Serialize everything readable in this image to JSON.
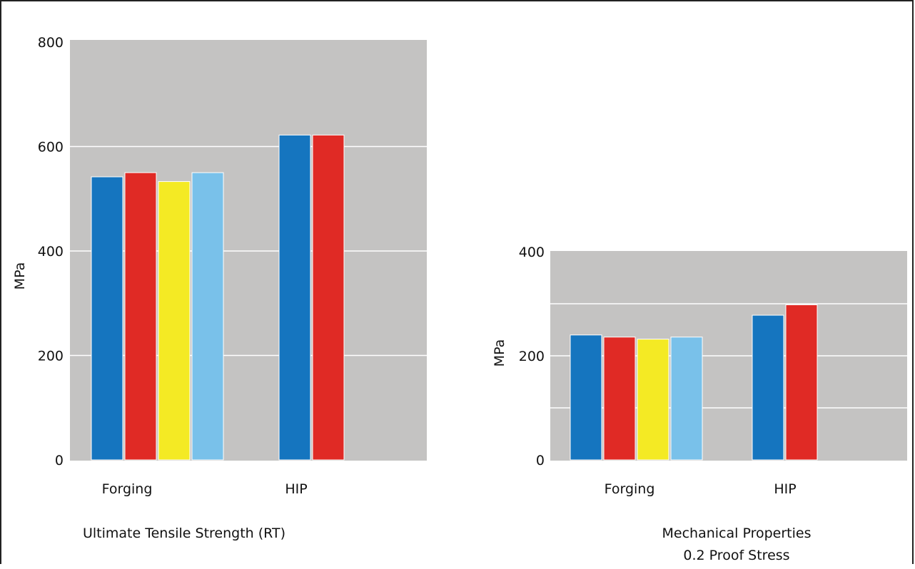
{
  "chart_data": [
    {
      "type": "bar",
      "title": "Ultimate Tensile Strength (RT)",
      "ylabel": "MPa",
      "xlabel": "",
      "ylim": [
        0,
        800
      ],
      "yticks": [
        0,
        200,
        400,
        600,
        800
      ],
      "grid": true,
      "categories": [
        "Forging",
        "HIP"
      ],
      "series_colors": [
        "#1575bf",
        "#e02a25",
        "#f4ea24",
        "#79c1ea"
      ],
      "bars": [
        [
          542,
          550,
          533,
          550
        ],
        [
          622,
          622
        ]
      ]
    },
    {
      "type": "bar",
      "title_lines": [
        "Mechanical Properties",
        "0.2 Proof Stress"
      ],
      "ylabel": "MPa",
      "xlabel": "",
      "ylim": [
        0,
        400
      ],
      "yticks": [
        0,
        200,
        400
      ],
      "gridlines": [
        100,
        200,
        300
      ],
      "grid": true,
      "categories": [
        "Forging",
        "HIP"
      ],
      "series_colors": [
        "#1575bf",
        "#e02a25",
        "#f4ea24",
        "#79c1ea"
      ],
      "bars": [
        [
          240,
          236,
          232,
          236
        ],
        [
          278,
          298
        ]
      ]
    }
  ]
}
